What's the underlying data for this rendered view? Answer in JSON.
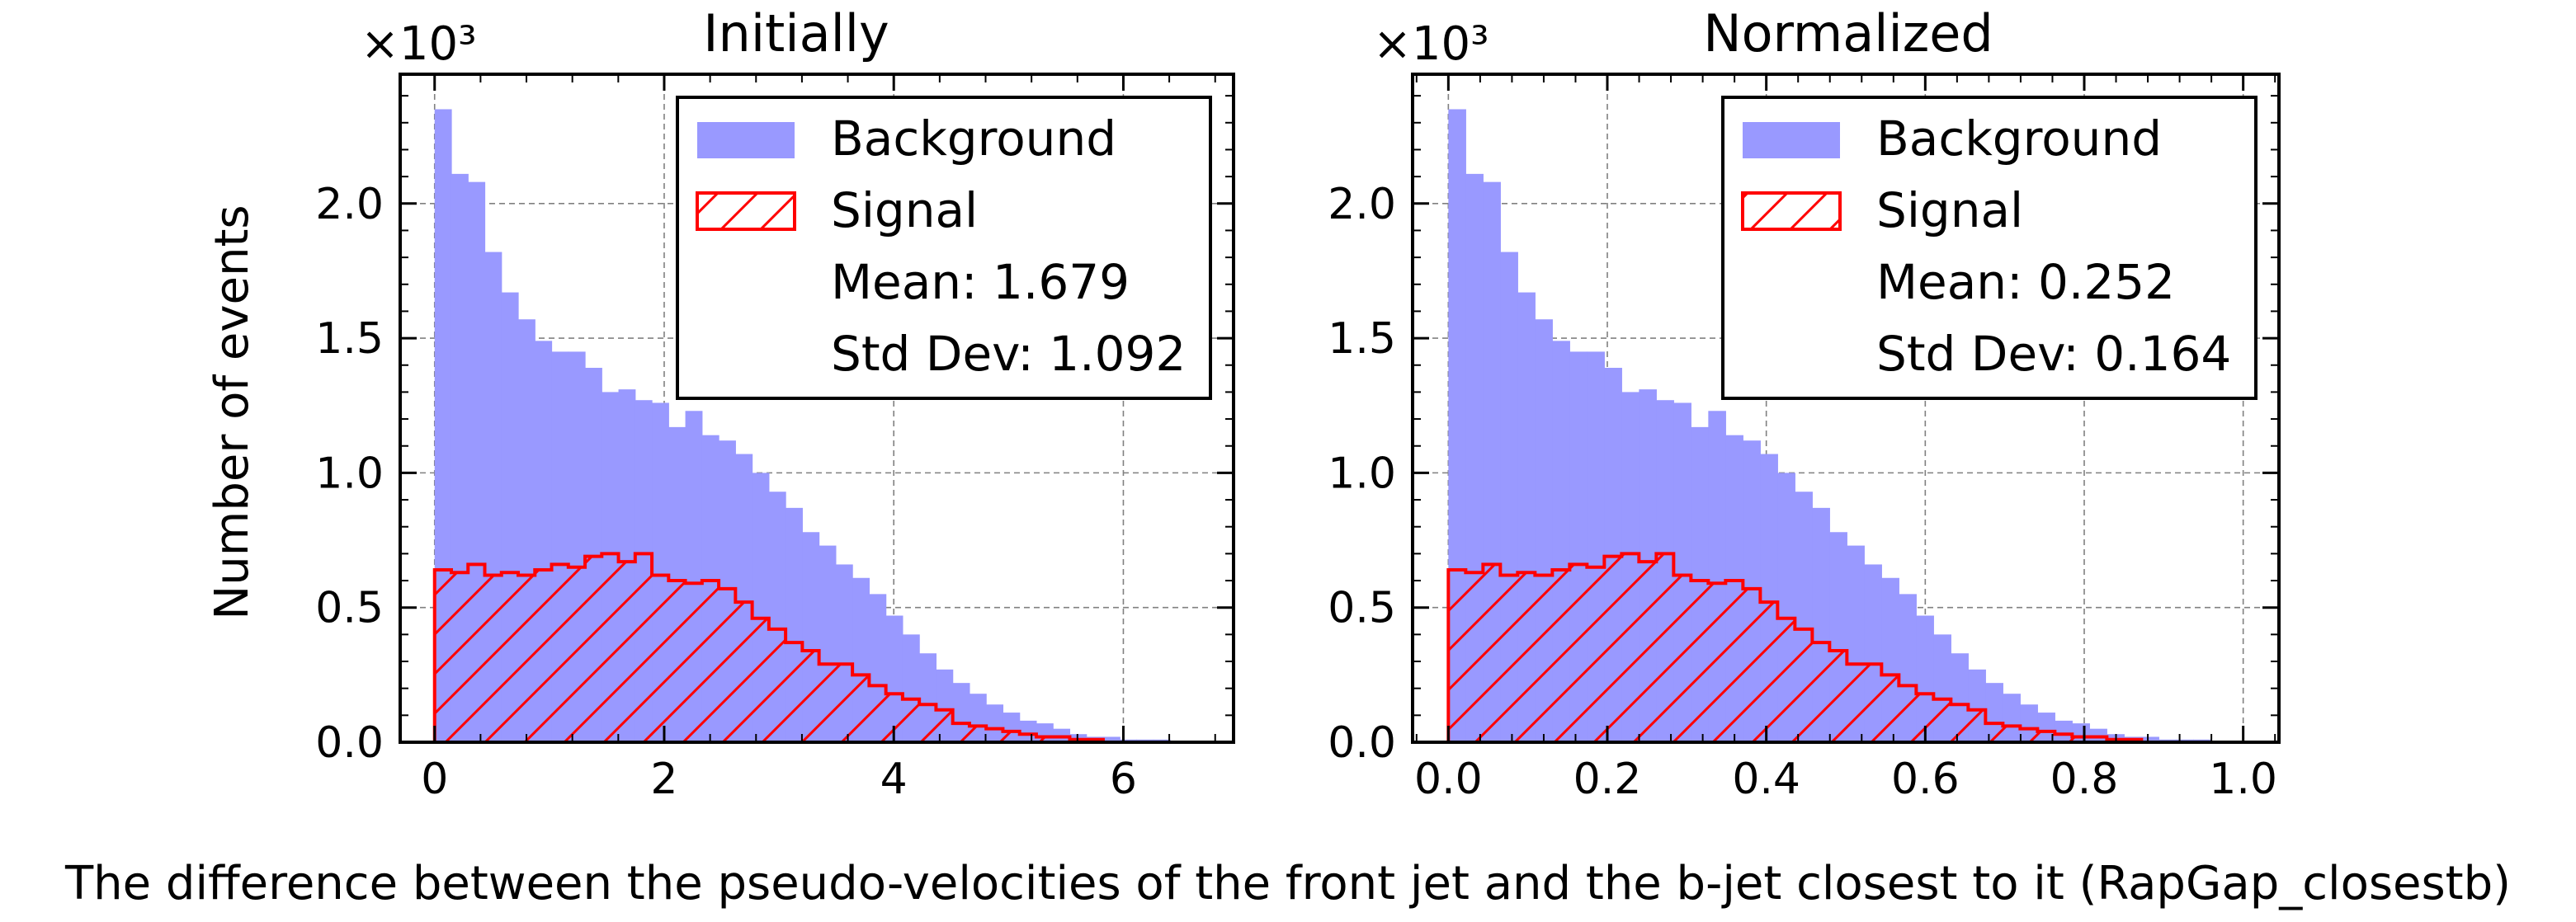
{
  "figure": {
    "ylabel": "Number of events",
    "xlabel": "The difference between the pseudo-velocities of the front jet and the b-jet closest to it (RapGap_closestb)"
  },
  "colors": {
    "background_fill": "#9999ff",
    "signal_edge": "#ff0000",
    "grid": "#808080"
  },
  "chart_data": [
    {
      "type": "histogram",
      "title": "Initially",
      "y_multiplier": "×10³",
      "xlim": [
        -0.3,
        6.96
      ],
      "ylim": [
        0,
        2.48
      ],
      "xticks": [
        0,
        2,
        4,
        6
      ],
      "xtick_labels": [
        "0",
        "2",
        "4",
        "6"
      ],
      "yticks": [
        0,
        0.5,
        1.0,
        1.5,
        2.0
      ],
      "ytick_labels": [
        "0.0",
        "0.5",
        "1.0",
        "1.5",
        "2.0"
      ],
      "grid": true,
      "legend": {
        "position": "top-right",
        "entries": [
          "Background",
          "Signal"
        ],
        "stats": [
          "Mean: 1.679",
          "Std Dev: 1.092"
        ]
      },
      "bin_edges_start": 0.0,
      "bin_width": 0.1456,
      "series": [
        {
          "name": "Background",
          "style": "filled",
          "values": [
            2.35,
            2.11,
            2.08,
            1.82,
            1.67,
            1.57,
            1.49,
            1.45,
            1.45,
            1.39,
            1.3,
            1.31,
            1.27,
            1.26,
            1.17,
            1.23,
            1.14,
            1.12,
            1.07,
            1.0,
            0.93,
            0.87,
            0.78,
            0.73,
            0.66,
            0.61,
            0.55,
            0.47,
            0.4,
            0.33,
            0.27,
            0.22,
            0.18,
            0.14,
            0.11,
            0.08,
            0.07,
            0.05,
            0.03,
            0.02,
            0.02,
            0.01,
            0.01,
            0.01,
            0.0
          ]
        },
        {
          "name": "Signal",
          "style": "hatched",
          "values": [
            0.64,
            0.63,
            0.66,
            0.62,
            0.63,
            0.62,
            0.64,
            0.66,
            0.65,
            0.69,
            0.7,
            0.67,
            0.7,
            0.62,
            0.6,
            0.59,
            0.6,
            0.57,
            0.52,
            0.46,
            0.42,
            0.37,
            0.34,
            0.29,
            0.29,
            0.25,
            0.21,
            0.18,
            0.16,
            0.14,
            0.12,
            0.07,
            0.06,
            0.05,
            0.04,
            0.03,
            0.02,
            0.02,
            0.01,
            0.01,
            0.0,
            0.0,
            0.0,
            0.0,
            0.0
          ]
        }
      ]
    },
    {
      "type": "histogram",
      "title": "Normalized",
      "y_multiplier": "×10³",
      "xlim": [
        -0.045,
        1.045
      ],
      "ylim": [
        0,
        2.48
      ],
      "xticks": [
        0,
        0.2,
        0.4,
        0.6,
        0.8,
        1.0
      ],
      "xtick_labels": [
        "0.0",
        "0.2",
        "0.4",
        "0.6",
        "0.8",
        "1.0"
      ],
      "yticks": [
        0,
        0.5,
        1.0,
        1.5,
        2.0
      ],
      "ytick_labels": [
        "0.0",
        "0.5",
        "1.0",
        "1.5",
        "2.0"
      ],
      "grid": true,
      "legend": {
        "position": "top-right",
        "entries": [
          "Background",
          "Signal"
        ],
        "stats": [
          "Mean: 0.252",
          "Std Dev: 0.164"
        ]
      },
      "bin_edges_start": 0.0,
      "bin_width": 0.0218,
      "series": [
        {
          "name": "Background",
          "style": "filled",
          "values": [
            2.35,
            2.11,
            2.08,
            1.82,
            1.67,
            1.57,
            1.49,
            1.45,
            1.45,
            1.39,
            1.3,
            1.31,
            1.27,
            1.26,
            1.17,
            1.23,
            1.14,
            1.12,
            1.07,
            1.0,
            0.93,
            0.87,
            0.78,
            0.73,
            0.66,
            0.61,
            0.55,
            0.47,
            0.4,
            0.33,
            0.27,
            0.22,
            0.18,
            0.14,
            0.11,
            0.08,
            0.07,
            0.05,
            0.03,
            0.02,
            0.02,
            0.01,
            0.01,
            0.01,
            0.0
          ]
        },
        {
          "name": "Signal",
          "style": "hatched",
          "values": [
            0.64,
            0.63,
            0.66,
            0.62,
            0.63,
            0.62,
            0.64,
            0.66,
            0.65,
            0.69,
            0.7,
            0.67,
            0.7,
            0.62,
            0.6,
            0.59,
            0.6,
            0.57,
            0.52,
            0.46,
            0.42,
            0.37,
            0.34,
            0.29,
            0.29,
            0.25,
            0.21,
            0.18,
            0.16,
            0.14,
            0.12,
            0.07,
            0.06,
            0.05,
            0.04,
            0.03,
            0.02,
            0.02,
            0.01,
            0.01,
            0.0,
            0.0,
            0.0,
            0.0,
            0.0
          ]
        }
      ]
    }
  ]
}
